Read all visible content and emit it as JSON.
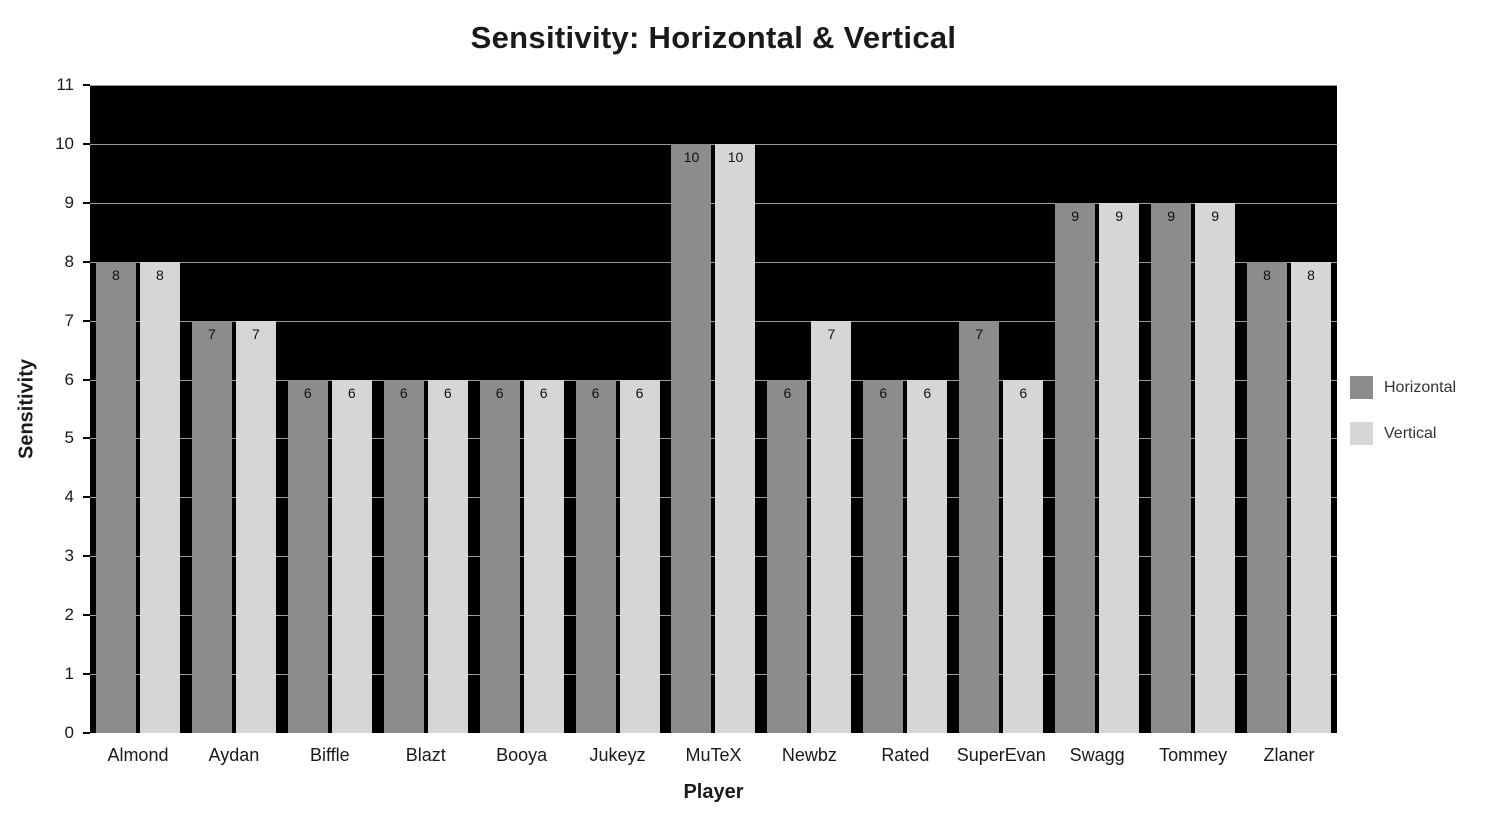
{
  "page": {
    "background": "#ffffff",
    "text_color": "#1a1a1a"
  },
  "chart_data": {
    "type": "bar",
    "title": "Sensitivity: Horizontal & Vertical",
    "xlabel": "Player",
    "ylabel": "Sensitivity",
    "categories": [
      "Almond",
      "Aydan",
      "Biffle",
      "Blazt",
      "Booya",
      "Jukeyz",
      "MuTeX",
      "Newbz",
      "Rated",
      "SuperEvan",
      "Swagg",
      "Tommey",
      "Zlaner"
    ],
    "series": [
      {
        "name": "Horizontal",
        "color": "#8c8c8c",
        "values": [
          8,
          7,
          6,
          6,
          6,
          6,
          10,
          6,
          6,
          7,
          9,
          9,
          8
        ]
      },
      {
        "name": "Vertical",
        "color": "#d6d6d6",
        "values": [
          8,
          7,
          6,
          6,
          6,
          6,
          10,
          7,
          6,
          6,
          9,
          9,
          8
        ]
      }
    ],
    "ylim": [
      0,
      11
    ],
    "yticks": [
      0,
      1,
      2,
      3,
      4,
      5,
      6,
      7,
      8,
      9,
      10,
      11
    ],
    "grid": true,
    "bar_value_labels": true,
    "legend_position": "right",
    "plot_background": "#000000",
    "gridline_color": "#9c9c9c"
  }
}
